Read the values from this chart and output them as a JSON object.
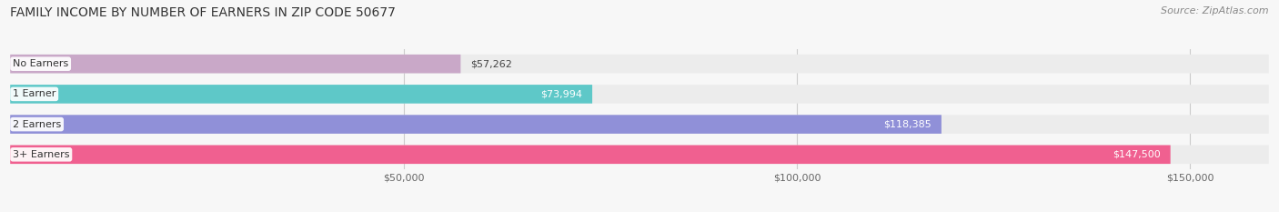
{
  "title": "FAMILY INCOME BY NUMBER OF EARNERS IN ZIP CODE 50677",
  "source": "Source: ZipAtlas.com",
  "categories": [
    "No Earners",
    "1 Earner",
    "2 Earners",
    "3+ Earners"
  ],
  "values": [
    57262,
    73994,
    118385,
    147500
  ],
  "labels": [
    "$57,262",
    "$73,994",
    "$118,385",
    "$147,500"
  ],
  "bar_colors": [
    "#c9a8c8",
    "#5ec8c8",
    "#9090d8",
    "#f06090"
  ],
  "bar_bg_color": "#ececec",
  "xlim": [
    0,
    160000
  ],
  "xticks": [
    50000,
    100000,
    150000
  ],
  "xticklabels": [
    "$50,000",
    "$100,000",
    "$150,000"
  ],
  "title_fontsize": 10,
  "source_fontsize": 8,
  "label_fontsize": 8,
  "category_fontsize": 8,
  "bar_height": 0.62,
  "background_color": "#f7f7f7"
}
